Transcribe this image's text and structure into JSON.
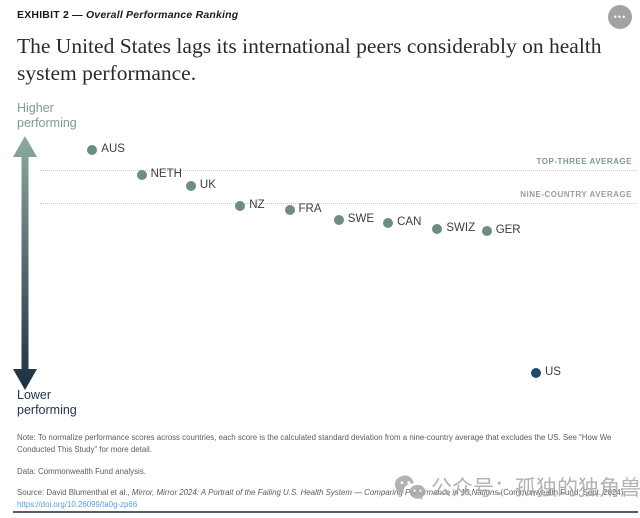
{
  "header": {
    "exhibit_label": "EXHIBIT 2",
    "exhibit_dash": "—",
    "exhibit_subtitle": "Overall Performance Ranking",
    "menu_glyph": "•••"
  },
  "title": "The United States lags its international peers considerably on health system performance.",
  "axis": {
    "higher_label": "Higher performing",
    "lower_label": "Lower performing"
  },
  "chart_data": {
    "type": "scatter",
    "title": "Overall Performance Ranking",
    "x_meaning": "overall performance rank (1 = best)",
    "y_meaning": "standard deviations from nine-country average (excludes US)",
    "grid": "two dotted horizontal reference lines",
    "points": [
      {
        "label": "AUS",
        "rank": 1,
        "score": 1.0,
        "color_key": "peer"
      },
      {
        "label": "NETH",
        "rank": 2,
        "score": 0.53,
        "color_key": "peer"
      },
      {
        "label": "UK",
        "rank": 3,
        "score": 0.32,
        "color_key": "peer"
      },
      {
        "label": "NZ",
        "rank": 4,
        "score": -0.06,
        "color_key": "peer"
      },
      {
        "label": "FRA",
        "rank": 5,
        "score": -0.13,
        "color_key": "peer"
      },
      {
        "label": "SWE",
        "rank": 6,
        "score": -0.32,
        "color_key": "peer"
      },
      {
        "label": "CAN",
        "rank": 7,
        "score": -0.38,
        "color_key": "peer"
      },
      {
        "label": "SWIZ",
        "rank": 8,
        "score": -0.49,
        "color_key": "peer"
      },
      {
        "label": "GER",
        "rank": 9,
        "score": -0.53,
        "color_key": "peer"
      },
      {
        "label": "US",
        "rank": 10,
        "score": -3.21,
        "color_key": "us"
      }
    ],
    "reference_lines": [
      {
        "label": "TOP-THREE AVERAGE",
        "value": 0.62,
        "label_color": "#7d9a8e"
      },
      {
        "label": "NINE-COUNTRY AVERAGE",
        "value": 0.0,
        "label_color": "#9c9c9c"
      }
    ],
    "colors": {
      "peer": "#6b8e81",
      "us": "#1d4b70",
      "arrow_top": "#8dab9f",
      "arrow_bottom": "#1c2f42"
    }
  },
  "notes": {
    "note": "Note: To normalize performance scores across countries, each score is the calculated standard deviation from a nine-country average that excludes the US. See “How We Conducted This Study” for more detail.",
    "data": "Data: Commonwealth Fund analysis.",
    "source_prefix": "Source: David Blumenthal et al., ",
    "source_italic": "Mirror, Mirror 2024: A Portrait of the Failing U.S. Health System — Comparing Performance in 10 Nations",
    "source_suffix": " (Commonwealth Fund, Sept. 2024).",
    "link": "https://doi.org/10.26099/ta0g-zp66"
  },
  "watermark": {
    "text": "公众号：孤独的独角兽",
    "icon": "wechat-icon"
  }
}
